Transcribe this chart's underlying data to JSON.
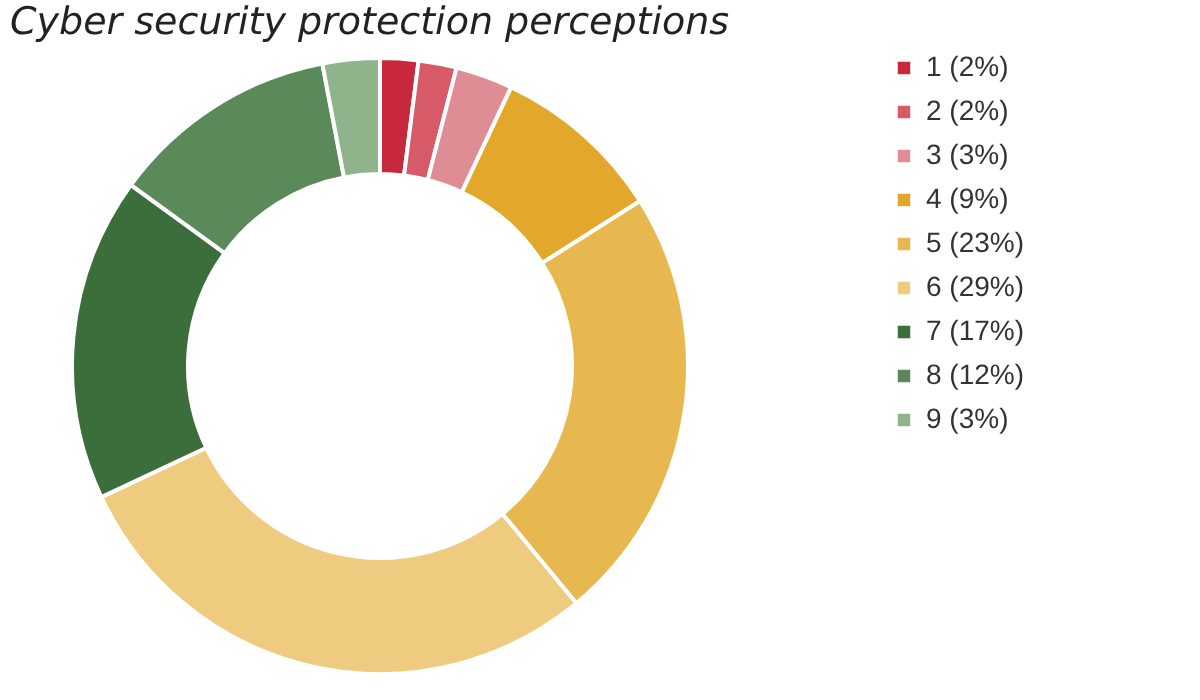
{
  "chart_data": {
    "type": "donut",
    "title": "Cyber security protection perceptions",
    "categories": [
      "1 (2%)",
      "2 (2%)",
      "3 (3%)",
      "4 (9%)",
      "5 (23%)",
      "6 (29%)",
      "7 (17%)",
      "8 (12%)",
      "9 (3%)"
    ],
    "values": [
      2,
      2,
      3,
      9,
      23,
      29,
      17,
      12,
      3
    ],
    "colors": [
      "#c8283c",
      "#d65a68",
      "#e08c94",
      "#e3a72c",
      "#e8b850",
      "#efcb80",
      "#3b6e3a",
      "#5a8a5a",
      "#8fb48c"
    ],
    "legend": "right"
  }
}
